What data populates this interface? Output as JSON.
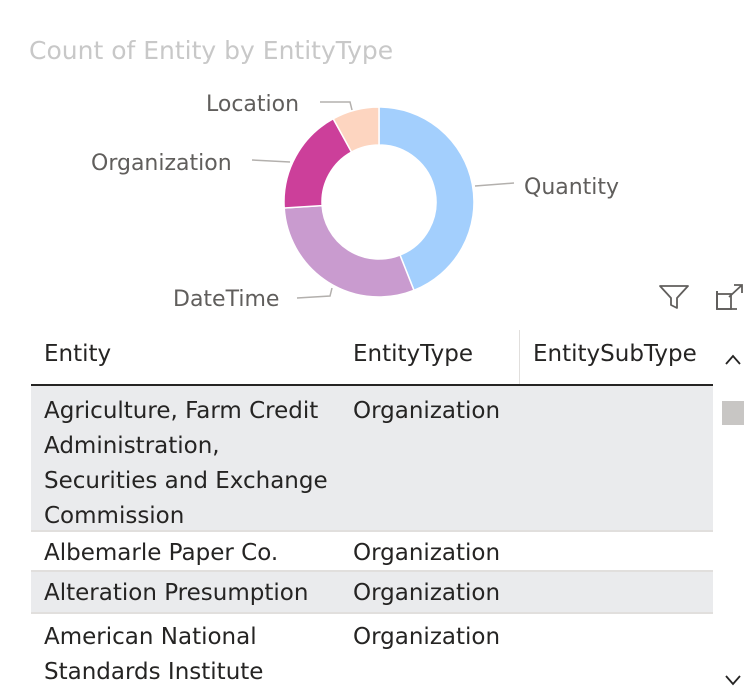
{
  "chart": {
    "title": "Count of Entity by EntityType"
  },
  "chart_data": {
    "type": "pie",
    "title": "Count of Entity by EntityType",
    "categories": [
      "Quantity",
      "DateTime",
      "Organization",
      "Location"
    ],
    "values": [
      44,
      30,
      18,
      8
    ],
    "colors": [
      "#a3cffd",
      "#c99bcf",
      "#cc3f9a",
      "#fdd5c0"
    ],
    "donut": true,
    "legend": "none"
  },
  "toolbar": {
    "filter_icon": "filter-icon",
    "focus_icon": "focus-mode-icon"
  },
  "table": {
    "columns": [
      "Entity",
      "EntityType",
      "EntitySubType"
    ],
    "rows": [
      {
        "entity": "Agriculture, Farm Credit Administration, Securities and Exchange Commission",
        "type": "Organization",
        "subtype": ""
      },
      {
        "entity": "Albemarle Paper Co.",
        "type": "Organization",
        "subtype": ""
      },
      {
        "entity": "Alteration Presumption",
        "type": "Organization",
        "subtype": ""
      },
      {
        "entity": "American National Standards Institute",
        "type": "Organization",
        "subtype": ""
      }
    ]
  },
  "scroll": {
    "up_icon": "chevron-up-icon",
    "down_icon": "chevron-down-icon"
  }
}
